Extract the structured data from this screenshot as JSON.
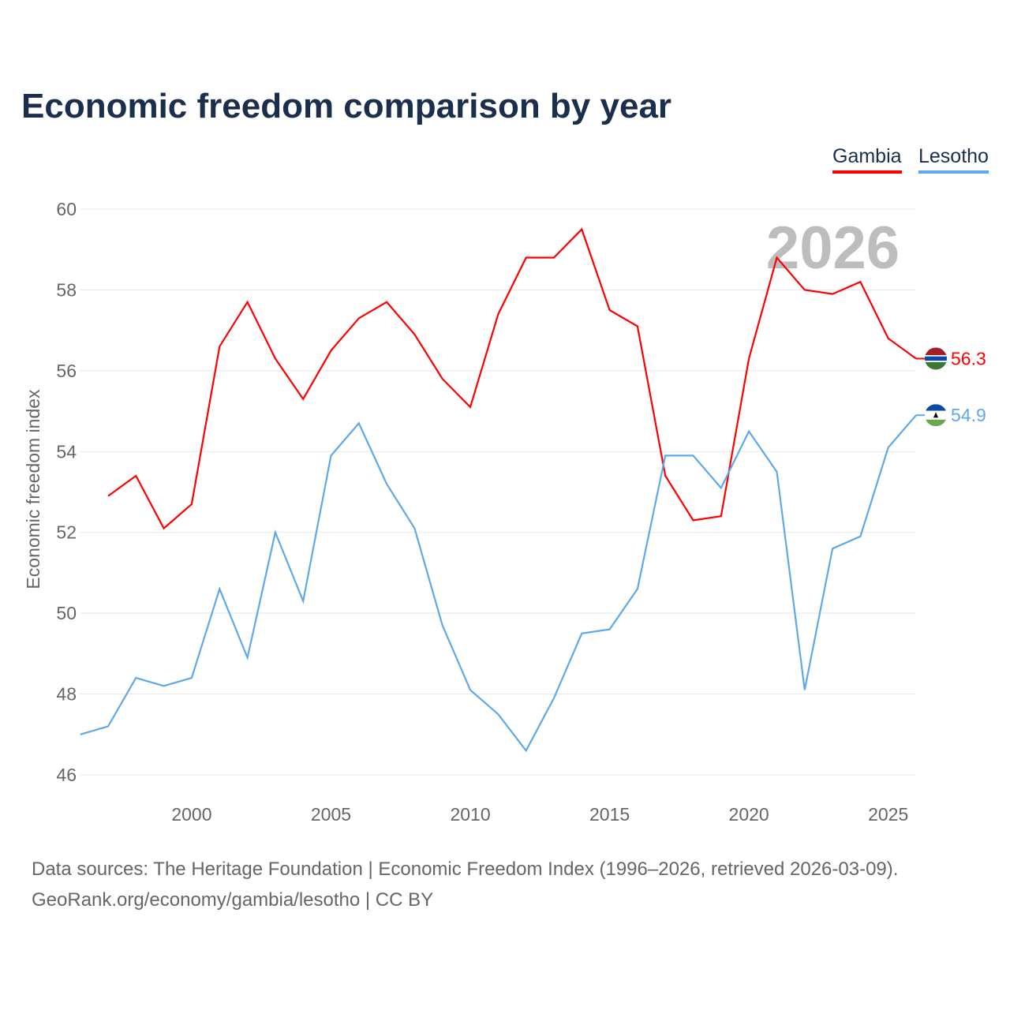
{
  "title": "Economic freedom comparison by year",
  "watermark_year": "2026",
  "footer": {
    "line1": "Data sources: The Heritage Foundation | Economic Freedom Index (1996–2026, retrieved 2026-03-09).",
    "line2": "GeoRank.org/economy/gambia/lesotho | CC BY"
  },
  "chart_data": {
    "type": "line",
    "title": "Economic freedom comparison by year",
    "xlabel": "",
    "ylabel": "Economic freedom index",
    "xlim": [
      1996,
      2026
    ],
    "ylim": [
      46,
      60
    ],
    "yticks": [
      46,
      48,
      50,
      52,
      54,
      56,
      58,
      60
    ],
    "xticks": [
      2000,
      2005,
      2010,
      2015,
      2020,
      2025
    ],
    "grid": true,
    "legend_position": "top-right",
    "series": [
      {
        "name": "Gambia",
        "color": "#ff0000",
        "end_label": "56.3",
        "x": [
          1997,
          1998,
          1999,
          2000,
          2001,
          2002,
          2003,
          2004,
          2005,
          2006,
          2007,
          2008,
          2009,
          2010,
          2011,
          2012,
          2013,
          2014,
          2015,
          2016,
          2017,
          2018,
          2019,
          2020,
          2021,
          2022,
          2023,
          2024,
          2025,
          2026
        ],
        "values": [
          52.9,
          53.4,
          52.1,
          52.7,
          56.6,
          57.7,
          56.3,
          55.3,
          56.5,
          57.3,
          57.7,
          56.9,
          55.8,
          55.1,
          57.4,
          58.8,
          58.8,
          59.5,
          57.5,
          57.1,
          53.4,
          52.3,
          52.4,
          56.3,
          58.8,
          58.0,
          57.9,
          58.2,
          56.8,
          56.3
        ]
      },
      {
        "name": "Lesotho",
        "color": "#5ea8ec",
        "end_label": "54.9",
        "x": [
          1996,
          1997,
          1998,
          1999,
          2000,
          2001,
          2002,
          2003,
          2004,
          2005,
          2006,
          2007,
          2008,
          2009,
          2010,
          2011,
          2012,
          2013,
          2014,
          2015,
          2016,
          2017,
          2018,
          2019,
          2020,
          2021,
          2022,
          2023,
          2024,
          2025,
          2026
        ],
        "values": [
          47.0,
          47.2,
          48.4,
          48.2,
          48.4,
          50.6,
          48.9,
          52.0,
          50.3,
          53.9,
          54.7,
          53.2,
          52.1,
          49.7,
          48.1,
          47.5,
          46.6,
          47.9,
          49.5,
          49.6,
          50.6,
          53.9,
          53.9,
          53.1,
          54.5,
          53.5,
          48.1,
          51.6,
          51.9,
          54.1,
          54.9
        ]
      }
    ]
  }
}
